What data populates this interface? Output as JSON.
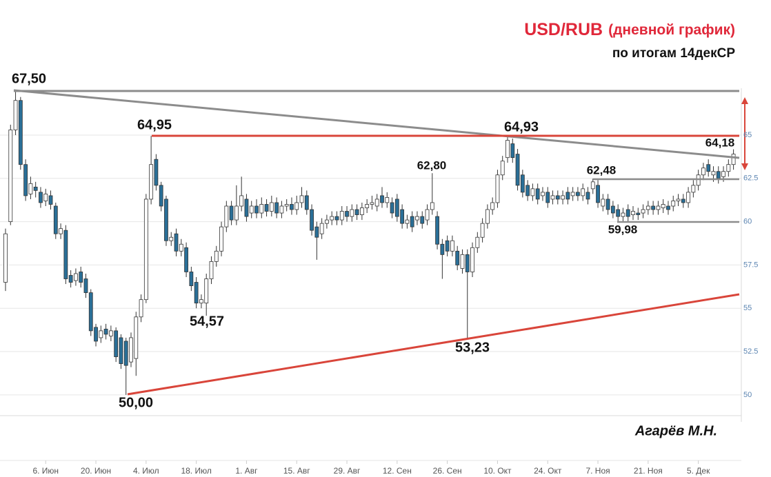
{
  "chart_data": {
    "type": "candlestick",
    "title": "USD/RUB",
    "title_note": "(дневной график)",
    "subtitle": "по итогам 14декСР",
    "author": "Агарёв М.Н.",
    "annotations": [
      "67,50",
      "64,95",
      "54,57",
      "50,00",
      "62,80",
      "53,23",
      "64,93",
      "62,48",
      "59,98",
      "64,18"
    ],
    "up_color": "#ffffff",
    "down_color": "#2a6f97",
    "grid": true,
    "ylim": [
      48.8,
      72.8
    ],
    "yticks": [
      50,
      52.5,
      55,
      57.5,
      60,
      62.5,
      65
    ],
    "categories": [
      null,
      null,
      null,
      null,
      null,
      null,
      null,
      null,
      "6. Июн",
      null,
      null,
      null,
      null,
      null,
      null,
      null,
      null,
      null,
      "20. Июн",
      null,
      null,
      null,
      null,
      null,
      null,
      null,
      null,
      null,
      "4. Июл",
      null,
      null,
      null,
      null,
      null,
      null,
      null,
      null,
      null,
      "18. Июл",
      null,
      null,
      null,
      null,
      null,
      null,
      null,
      null,
      null,
      "1. Авг",
      null,
      null,
      null,
      null,
      null,
      null,
      null,
      null,
      null,
      "15. Авг",
      null,
      null,
      null,
      null,
      null,
      null,
      null,
      null,
      null,
      "29. Авг",
      null,
      null,
      null,
      null,
      null,
      null,
      null,
      null,
      null,
      "12. Сен",
      null,
      null,
      null,
      null,
      null,
      null,
      null,
      null,
      null,
      "26. Сен",
      null,
      null,
      null,
      null,
      null,
      null,
      null,
      null,
      null,
      "10. Окт",
      null,
      null,
      null,
      null,
      null,
      null,
      null,
      null,
      null,
      "24. Окт",
      null,
      null,
      null,
      null,
      null,
      null,
      null,
      null,
      null,
      "7. Ноя",
      null,
      null,
      null,
      null,
      null,
      null,
      null,
      null,
      null,
      "21. Ноя",
      null,
      null,
      null,
      null,
      null,
      null,
      null,
      null,
      null,
      "5. Дек",
      null,
      null,
      null,
      null,
      null,
      null,
      null
    ],
    "open": [
      56.5,
      60.0,
      65.3,
      67.0,
      63.3,
      61.6,
      62.0,
      61.7,
      61.2,
      61.5,
      60.9,
      59.3,
      59.5,
      56.9,
      56.6,
      57.1,
      56.7,
      55.9,
      53.9,
      53.3,
      53.8,
      53.4,
      53.7,
      53.3,
      53.1,
      51.9,
      52.1,
      54.5,
      55.5,
      61.3,
      63.6,
      62.1,
      61.3,
      58.9,
      59.3,
      58.3,
      58.5,
      57.1,
      56.5,
      55.3,
      55.3,
      56.7,
      57.7,
      58.3,
      59.7,
      60.9,
      60.1,
      60.9,
      61.3,
      60.5,
      60.9,
      60.5,
      61.0,
      60.6,
      61.1,
      60.5,
      60.9,
      61.0,
      60.7,
      61.1,
      61.5,
      60.7,
      59.7,
      59.3,
      59.9,
      60.1,
      60.3,
      60.1,
      60.6,
      60.3,
      60.7,
      60.4,
      60.8,
      61.0,
      60.9,
      61.5,
      61.1,
      61.1,
      61.3,
      60.7,
      59.9,
      60.3,
      60.1,
      60.3,
      60.1,
      60.7,
      60.3,
      58.7,
      58.9,
      58.3,
      58.3,
      57.3,
      58.1,
      57.1,
      58.5,
      59.1,
      59.9,
      60.7,
      61.1,
      62.7,
      63.7,
      64.5,
      63.9,
      62.7,
      62.1,
      61.5,
      61.9,
      61.5,
      61.7,
      61.3,
      61.5,
      61.3,
      61.7,
      61.5,
      61.7,
      61.5,
      61.7,
      61.9,
      62.1,
      60.9,
      61.3,
      60.9,
      60.7,
      60.3,
      60.7,
      60.4,
      60.5,
      60.5,
      60.7,
      60.9,
      60.7,
      60.8,
      60.9,
      60.9,
      61.2,
      61.3,
      61.1,
      61.7,
      62.1,
      62.7,
      63.3,
      62.7,
      62.9,
      62.6,
      62.9,
      63.3
    ],
    "high": [
      59.6,
      65.6,
      67.5,
      67.2,
      63.6,
      62.6,
      62.3,
      62.0,
      61.9,
      61.8,
      61.1,
      59.9,
      59.8,
      57.2,
      57.3,
      57.4,
      57.0,
      56.1,
      54.1,
      54.0,
      54.1,
      54.0,
      53.9,
      53.5,
      53.3,
      53.6,
      54.8,
      55.8,
      61.6,
      64.95,
      63.9,
      62.3,
      61.5,
      59.4,
      59.6,
      59.0,
      58.8,
      57.4,
      56.8,
      55.8,
      57.0,
      58.0,
      58.6,
      60.0,
      61.2,
      61.2,
      62.1,
      62.6,
      61.6,
      61.2,
      61.3,
      61.4,
      61.3,
      61.5,
      61.4,
      61.2,
      61.3,
      61.4,
      61.5,
      62.0,
      61.8,
      61.0,
      60.0,
      60.2,
      60.4,
      60.6,
      60.6,
      60.9,
      60.9,
      61.0,
      61.0,
      61.1,
      61.3,
      61.5,
      61.6,
      62.0,
      61.7,
      61.4,
      61.6,
      61.0,
      60.4,
      60.6,
      60.6,
      60.6,
      61.0,
      62.8,
      60.6,
      59.0,
      59.2,
      59.2,
      58.6,
      58.4,
      58.4,
      58.8,
      59.4,
      60.2,
      61.0,
      61.4,
      63.0,
      63.8,
      64.93,
      64.8,
      64.2,
      63.0,
      62.4,
      62.2,
      62.2,
      62.0,
      62.0,
      61.8,
      61.8,
      61.8,
      62.0,
      62.0,
      62.0,
      62.2,
      62.0,
      62.48,
      62.4,
      61.6,
      61.6,
      61.2,
      61.0,
      60.8,
      61.0,
      60.9,
      60.8,
      61.0,
      61.2,
      61.2,
      61.2,
      61.3,
      61.2,
      61.5,
      61.6,
      61.6,
      62.0,
      62.4,
      63.0,
      63.4,
      63.6,
      63.2,
      63.2,
      63.2,
      63.6,
      64.18
    ],
    "low": [
      56.0,
      59.8,
      65.0,
      63.0,
      61.2,
      61.3,
      61.4,
      60.8,
      60.9,
      60.7,
      59.0,
      59.0,
      56.4,
      56.2,
      56.3,
      56.2,
      55.6,
      53.4,
      52.8,
      53.0,
      53.2,
      53.1,
      51.9,
      51.5,
      50.0,
      51.6,
      51.1,
      54.2,
      55.3,
      61.0,
      61.8,
      60.6,
      58.6,
      58.6,
      58.0,
      58.0,
      56.8,
      56.0,
      55.0,
      55.0,
      54.57,
      56.4,
      57.4,
      58.0,
      59.4,
      59.8,
      59.8,
      60.6,
      60.0,
      60.2,
      60.2,
      60.2,
      60.3,
      60.3,
      60.2,
      60.2,
      60.6,
      60.4,
      60.4,
      60.8,
      60.4,
      59.2,
      57.8,
      59.0,
      59.6,
      59.8,
      59.8,
      59.8,
      60.0,
      60.0,
      60.1,
      60.1,
      60.5,
      60.7,
      60.6,
      60.8,
      60.8,
      60.2,
      60.0,
      59.6,
      59.6,
      59.4,
      59.8,
      59.6,
      59.8,
      60.4,
      58.4,
      56.7,
      58.0,
      58.0,
      57.2,
      57.0,
      53.23,
      56.8,
      58.2,
      58.8,
      59.6,
      60.4,
      60.8,
      62.4,
      63.4,
      63.4,
      61.8,
      61.4,
      61.2,
      61.2,
      61.0,
      61.2,
      60.8,
      61.0,
      61.0,
      61.0,
      61.0,
      61.2,
      61.2,
      61.2,
      61.0,
      61.6,
      60.8,
      60.6,
      60.4,
      60.2,
      59.98,
      60.0,
      60.0,
      60.1,
      60.1,
      60.2,
      60.4,
      60.4,
      60.4,
      60.5,
      60.4,
      60.6,
      60.9,
      60.8,
      60.8,
      61.4,
      61.8,
      62.4,
      62.6,
      62.3,
      62.2,
      62.3,
      62.6,
      63.0
    ],
    "close": [
      59.3,
      65.3,
      67.0,
      63.3,
      61.5,
      62.2,
      61.8,
      61.1,
      61.6,
      61.0,
      59.3,
      59.6,
      56.7,
      56.5,
      57.0,
      56.5,
      55.9,
      53.7,
      53.1,
      53.7,
      53.5,
      53.7,
      52.2,
      51.8,
      51.7,
      53.3,
      54.5,
      55.5,
      61.3,
      63.3,
      62.1,
      60.9,
      58.9,
      59.1,
      58.3,
      58.7,
      57.1,
      56.3,
      55.3,
      55.5,
      56.7,
      57.7,
      58.3,
      59.7,
      60.9,
      60.1,
      60.9,
      61.5,
      60.3,
      60.9,
      60.5,
      61.0,
      60.6,
      61.1,
      60.5,
      60.9,
      61.0,
      60.7,
      61.1,
      61.5,
      60.7,
      59.5,
      59.1,
      59.9,
      60.1,
      60.3,
      60.1,
      60.6,
      60.3,
      60.7,
      60.4,
      60.8,
      61.0,
      61.1,
      61.3,
      61.1,
      61.4,
      60.5,
      60.3,
      59.9,
      60.1,
      59.7,
      60.3,
      59.9,
      60.7,
      61.1,
      58.7,
      58.1,
      58.3,
      58.9,
      57.5,
      58.1,
      57.1,
      58.5,
      59.1,
      59.9,
      60.7,
      61.1,
      62.7,
      63.5,
      64.7,
      63.7,
      62.1,
      61.7,
      61.5,
      61.9,
      61.3,
      61.7,
      61.1,
      61.5,
      61.3,
      61.5,
      61.3,
      61.7,
      61.5,
      61.9,
      61.3,
      62.3,
      61.1,
      61.3,
      60.7,
      60.5,
      60.3,
      60.5,
      60.3,
      60.6,
      60.4,
      60.7,
      60.9,
      60.7,
      60.9,
      61.0,
      60.7,
      61.2,
      61.3,
      61.1,
      61.7,
      62.1,
      62.7,
      63.1,
      62.9,
      62.9,
      62.5,
      62.9,
      63.3,
      63.9
    ]
  }
}
